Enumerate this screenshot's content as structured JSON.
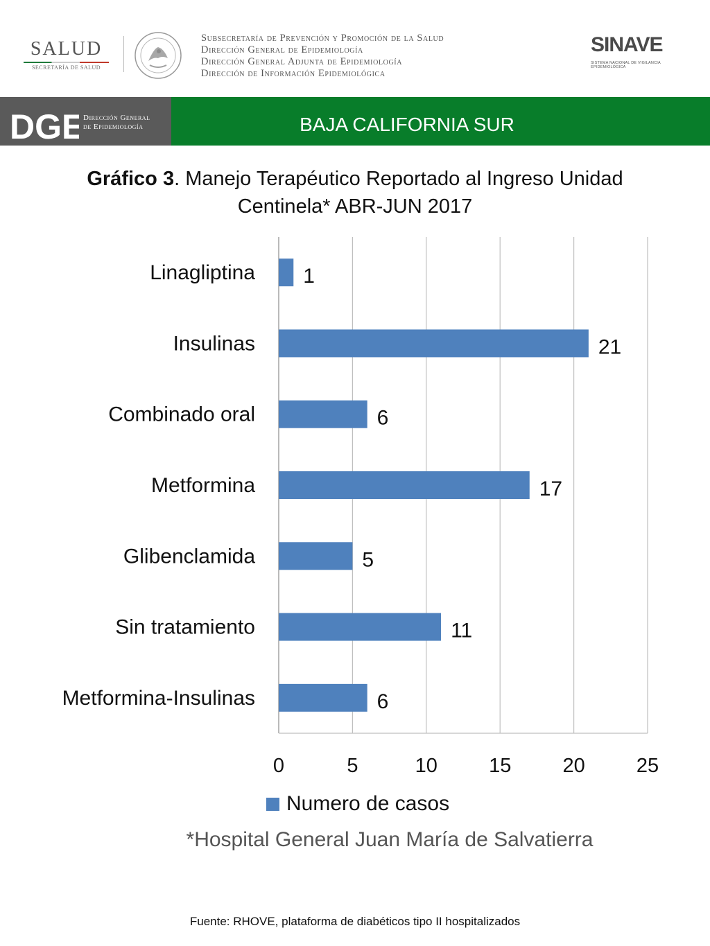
{
  "header": {
    "salud_logo": {
      "word": "SALUD",
      "sub": "SECRETARÍA DE SALUD"
    },
    "dept_lines": [
      "Subsecretaría de Prevención y Promoción de la Salud",
      "Dirección General de Epidemiología",
      "Dirección General Adjunta de Epidemiología",
      "Dirección de Información Epidemiológica"
    ],
    "sinave_logo": {
      "word": "SINAVE",
      "sub": "SISTEMA NACIONAL DE VIGILANCIA EPIDEMIOLÓGICA"
    }
  },
  "band": {
    "dge_mark": "DGE",
    "dge_text": [
      "Dirección General",
      "de Epidemiología"
    ],
    "title": "BAJA CALIFORNIA SUR"
  },
  "title": {
    "bold": "Gráfico 3",
    "rest": ". Manejo Terapéutico Reportado al Ingreso Unidad",
    "line2": "Centinela* ABR-JUN 2017"
  },
  "chart_data": {
    "type": "bar",
    "orientation": "horizontal",
    "categories": [
      "Linagliptina",
      "Insulinas",
      "Combinado oral",
      "Metformina",
      "Glibenclamida",
      "Sin tratamiento",
      "Metformina-Insulinas"
    ],
    "series": [
      {
        "name": "Numero de casos",
        "values": [
          1,
          21,
          6,
          17,
          5,
          11,
          6
        ],
        "color": "#4f81bd"
      }
    ],
    "xlim": [
      0,
      25
    ],
    "xticks": [
      0,
      5,
      10,
      15,
      20,
      25
    ],
    "grid": "vertical",
    "legend": "bottom",
    "data_labels": true
  },
  "legend": {
    "label": "Numero de casos",
    "color": "#4f81bd"
  },
  "footnote": "*Hospital General Juan María de Salvatierra",
  "source": "Fuente: RHOVE, plataforma de diabéticos tipo II hospitalizados",
  "colors": {
    "band_green": "#087d2a",
    "band_gray": "#5a5a5a",
    "bar": "#4f81bd"
  }
}
